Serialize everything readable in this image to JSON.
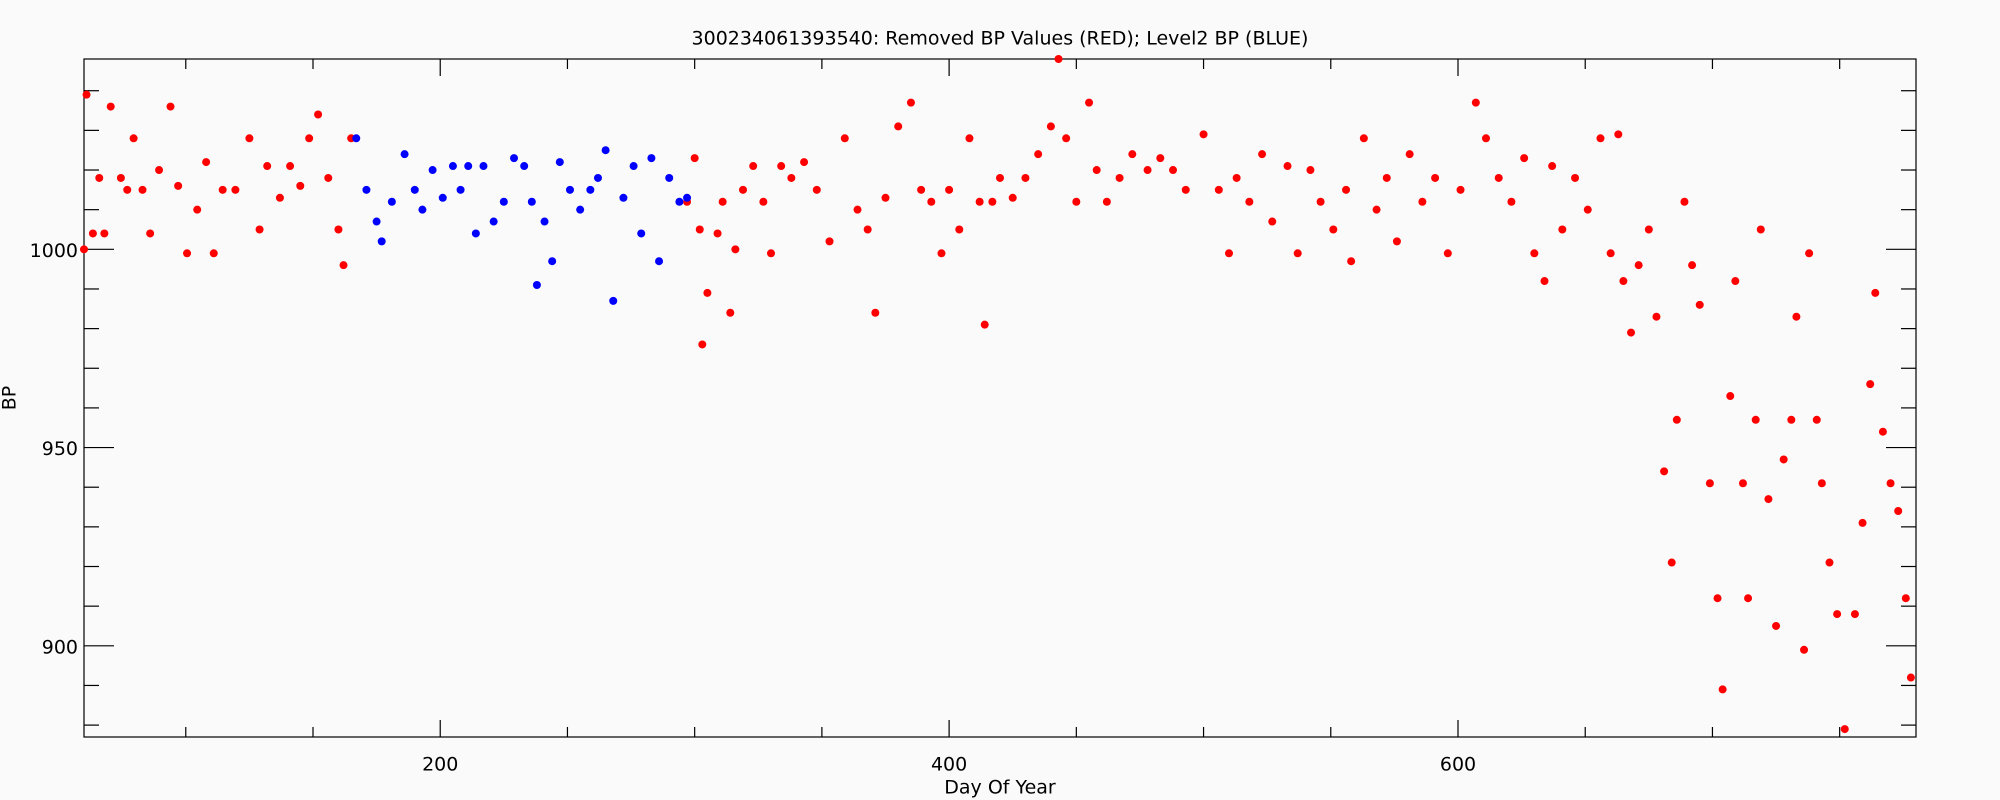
{
  "chart_data": {
    "type": "scatter",
    "title": "300234061393540: Removed BP Values (RED); Level2 BP (BLUE)",
    "x_label": "Day Of Year",
    "y_label": "BP",
    "xlim": [
      60,
      780
    ],
    "ylim": [
      877,
      1048
    ],
    "xticks": [
      200,
      400,
      600
    ],
    "yticks": [
      900,
      950,
      1000
    ],
    "xticks_minor": [
      100,
      150,
      250,
      300,
      350,
      450,
      500,
      550,
      650,
      700,
      750
    ],
    "yticks_minor": [
      880,
      890,
      910,
      920,
      930,
      940,
      960,
      970,
      980,
      990,
      1010,
      1020,
      1030,
      1040
    ],
    "series": [
      {
        "color": "#ff0000",
        "x": [
          60,
          61,
          63.5,
          66,
          68,
          70.5,
          74.5,
          77,
          79.5,
          83,
          86,
          89.5,
          94,
          97,
          100.5,
          104.5,
          108,
          111,
          114.5,
          119.5,
          125,
          129,
          132,
          137,
          141,
          145,
          148.5,
          152,
          156,
          160,
          162,
          165,
          297,
          300,
          302,
          303,
          305,
          309,
          311,
          314,
          316,
          319,
          323,
          327,
          330,
          334,
          338,
          343,
          348,
          353,
          359,
          364,
          368,
          371,
          375,
          380,
          385,
          389,
          393,
          397,
          400,
          404,
          408,
          412,
          414,
          417,
          420,
          425,
          430,
          435,
          440,
          443,
          446,
          450,
          455,
          458,
          462,
          467,
          472,
          478,
          483,
          488,
          493,
          500,
          506,
          510,
          513,
          518,
          523,
          527,
          533,
          537,
          542,
          546,
          551,
          556,
          558,
          563,
          568,
          572,
          576,
          581,
          586,
          591,
          596,
          601,
          607,
          611,
          616,
          621,
          626,
          630,
          634,
          637,
          641,
          646,
          651,
          656,
          660,
          663,
          665,
          668,
          671,
          675,
          678,
          681,
          684,
          686,
          689,
          692,
          695,
          699,
          702,
          704,
          707,
          709,
          712,
          714,
          717,
          719,
          722,
          725,
          728,
          731,
          733,
          736,
          738,
          741,
          743,
          746,
          749,
          752,
          756,
          759,
          762,
          764,
          767,
          770,
          773,
          776,
          778
        ],
        "values": [
          1000,
          1039,
          1004,
          1018,
          1004,
          1036,
          1018,
          1015,
          1028,
          1015,
          1004,
          1020,
          1036,
          1016,
          999,
          1010,
          1022,
          999,
          1015,
          1015,
          1028,
          1005,
          1021,
          1013,
          1021,
          1016,
          1028,
          1034,
          1018,
          1005,
          996,
          1028,
          1012,
          1023,
          1005,
          976,
          989,
          1004,
          1012,
          984,
          1000,
          1015,
          1021,
          1012,
          999,
          1021,
          1018,
          1022,
          1015,
          1002,
          1028,
          1010,
          1005,
          984,
          1013,
          1031,
          1037,
          1015,
          1012,
          999,
          1015,
          1005,
          1028,
          1012,
          981,
          1012,
          1018,
          1013,
          1018,
          1024,
          1031,
          1048,
          1028,
          1012,
          1037,
          1020,
          1012,
          1018,
          1024,
          1020,
          1023,
          1020,
          1015,
          1029,
          1015,
          999,
          1018,
          1012,
          1024,
          1007,
          1021,
          999,
          1020,
          1012,
          1005,
          1015,
          997,
          1028,
          1010,
          1018,
          1002,
          1024,
          1012,
          1018,
          999,
          1015,
          1037,
          1028,
          1018,
          1012,
          1023,
          999,
          992,
          1021,
          1005,
          1018,
          1010,
          1028,
          999,
          1029,
          992,
          979,
          996,
          1005,
          983,
          944,
          921,
          957,
          1012,
          996,
          986,
          941,
          912,
          889,
          963,
          992,
          941,
          912,
          957,
          1005,
          937,
          905,
          947,
          957,
          983,
          899,
          999,
          957,
          941,
          921,
          908,
          879,
          908,
          931,
          966,
          989,
          954,
          941,
          934,
          912,
          892
        ]
      },
      {
        "color": "#0000ff",
        "x": [
          167,
          171,
          175,
          177,
          181,
          186,
          190,
          193,
          197,
          201,
          205,
          208,
          211,
          214,
          217,
          221,
          225,
          229,
          233,
          236,
          238,
          241,
          244,
          247,
          251,
          255,
          259,
          262,
          265,
          268,
          272,
          276,
          279,
          283,
          286,
          290,
          294,
          297
        ],
        "values": [
          1028,
          1015,
          1007,
          1002,
          1012,
          1024,
          1015,
          1010,
          1020,
          1013,
          1021,
          1015,
          1021,
          1004,
          1021,
          1007,
          1012,
          1023,
          1021,
          1012,
          991,
          1007,
          997,
          1022,
          1015,
          1010,
          1015,
          1018,
          1025,
          987,
          1013,
          1021,
          1004,
          1023,
          997,
          1018,
          1012,
          1013
        ]
      }
    ]
  }
}
